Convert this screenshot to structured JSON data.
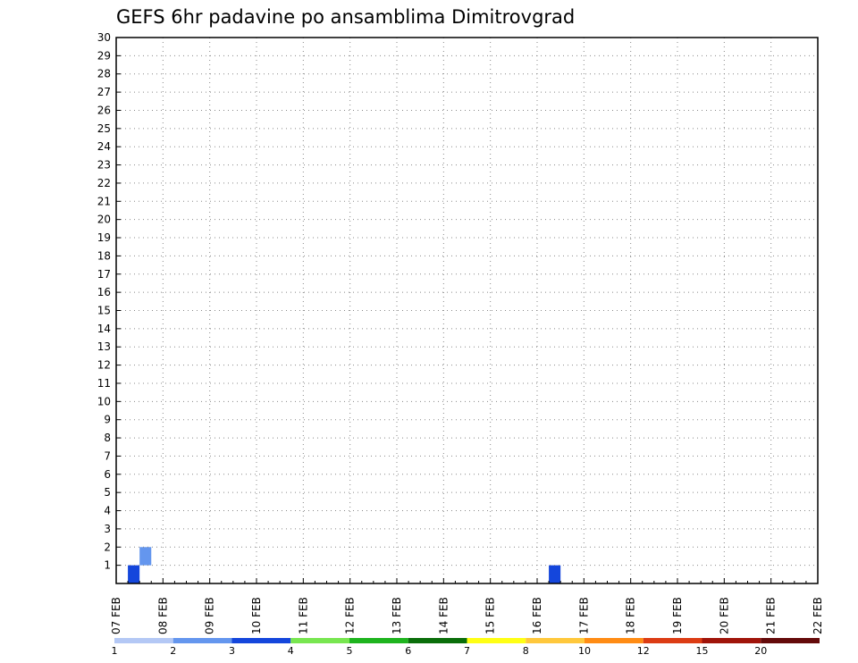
{
  "chart_data": {
    "type": "heatmap",
    "title": "GEFS 6hr padavine po ansamblima Dimitrovgrad",
    "x_tick_labels": [
      "07 FEB",
      "08 FEB",
      "09 FEB",
      "10 FEB",
      "11 FEB",
      "12 FEB",
      "13 FEB",
      "14 FEB",
      "15 FEB",
      "16 FEB",
      "17 FEB",
      "18 FEB",
      "19 FEB",
      "20 FEB",
      "21 FEB",
      "22 FEB"
    ],
    "y_tick_labels": [
      "1",
      "2",
      "3",
      "4",
      "5",
      "6",
      "7",
      "8",
      "9",
      "10",
      "11",
      "12",
      "13",
      "14",
      "15",
      "16",
      "17",
      "18",
      "19",
      "20",
      "21",
      "22",
      "23",
      "24",
      "25",
      "26",
      "27",
      "28",
      "29",
      "30"
    ],
    "grid": true,
    "colorbar": {
      "levels": [
        "1",
        "2",
        "3",
        "4",
        "5",
        "6",
        "7",
        "8",
        "10",
        "12",
        "15",
        "20"
      ],
      "colors": [
        "#b4c8f5",
        "#6496ee",
        "#1446dc",
        "#78e650",
        "#1eb41e",
        "#0a6e0a",
        "#ffff14",
        "#ffc83c",
        "#ff8c14",
        "#dc3c14",
        "#a0140a",
        "#640a0a"
      ]
    },
    "palette": {
      "L": "#b4c8f5",
      "B": "#6496ee",
      "D": "#1446dc",
      "G": "#78e650",
      "M": "#1eb41e",
      "K": "#0a6e0a",
      "Y": "#ffff14",
      "O": "#ffc83c",
      "R": "#ff8c14",
      "C": "#dc3c14",
      "X": "#a0140a",
      "Z": "#640a0a"
    },
    "cells": [
      [
        "0",
        "D",
        "0",
        "0",
        "0",
        "0",
        "0",
        "0",
        "0",
        "0",
        "0",
        "0",
        "0",
        "0",
        "0",
        "0",
        "0",
        "0",
        "0",
        "0",
        "0",
        "0",
        "0",
        "0",
        "0",
        "0",
        "0",
        "0",
        "0",
        "0",
        "0",
        "0",
        "0",
        "0",
        "0",
        "0",
        "0",
        "D",
        "0",
        "0"
      ],
      [
        "0",
        "0",
        "B",
        "0",
        "0",
        "0",
        "0",
        "0",
        "0",
        "0",
        "0",
        "0",
        "0",
        "0",
        "0",
        "0",
        "0",
        "0",
        "0",
        "0",
        "0",
        "0",
        "0",
        "0",
        "0",
        "0",
        "0",
        "0",
        "0",
        "0",
        "0",
        "0",
        "0",
        "0",
        "0",
        "0",
        "0",
        "0",
        "0",
        "0"
      ],
      [
        "0",
        "0",
        "0",
        "0",
        "0",
        "0",
        "0",
        "0",
        "0",
        "0",
        "0",
        "0",
        "0",
        "0",
        "0",
        "0",
        "0",
        "0",
        "0",
        "0",
        "0",
        "0",
        "0",
        "0",
        "0",
        "0",
        "0",
        "0",
        "0",
        "0",
        "0",
        "0",
        "0",
        "0",
        "0",
        "0",
        "0",
        "0",
        "0",
        "0"
      ],
      [
        "0",
        "0",
        "0",
        "0",
        "0",
        "0",
        "0",
        "0",
        "0",
        "0",
        "0",
        "0",
        "0",
        "0",
        "0",
        "0",
        "0",
        "0",
        "0",
        "0",
        "0",
        "0",
        "0",
        "0",
        "0",
        "0",
        "0",
        "0",
        "0",
        "0",
        "0",
        "0",
        "0",
        "0",
        "0",
        "0",
        "0",
        "0",
        "0",
        "0"
      ],
      [
        "0",
        "0",
        "0",
        "0",
        "0",
        "0",
        "0",
        "0",
        "0",
        "0",
        "0",
        "0",
        "0",
        "0",
        "0",
        "0",
        "0",
        "0",
        "0",
        "0",
        "0",
        "0",
        "0",
        "0",
        "0",
        "0",
        "0",
        "0",
        "0",
        "0",
        "0",
        "0",
        "0",
        "0",
        "0",
        "0",
        "0",
        "0",
        "0",
        "0"
      ],
      [
        "0",
        "0",
        "0",
        "0",
        "0",
        "0",
        "0",
        "0",
        "0",
        "0",
        "0",
        "0",
        "0",
        "0",
        "0",
        "0",
        "0",
        "0",
        "0",
        "0",
        "0",
        "0",
        "0",
        "0",
        "0",
        "0",
        "0",
        "0",
        "0",
        "0",
        "0",
        "0",
        "0",
        "0",
        "0",
        "0",
        "0",
        "0",
        "0",
        "0"
      ],
      [
        "0",
        "0",
        "0",
        "0",
        "0",
        "0",
        "0",
        "0",
        "0",
        "0",
        "0",
        "0",
        "0",
        "0",
        "0",
        "0",
        "0",
        "0",
        "0",
        "0",
        "0",
        "0",
        "0",
        "0",
        "0",
        "0",
        "0",
        "0",
        "0",
        "0",
        "0",
        "0",
        "0",
        "0",
        "0",
        "0",
        "0",
        "0",
        "0",
        "0"
      ]
    ]
  }
}
